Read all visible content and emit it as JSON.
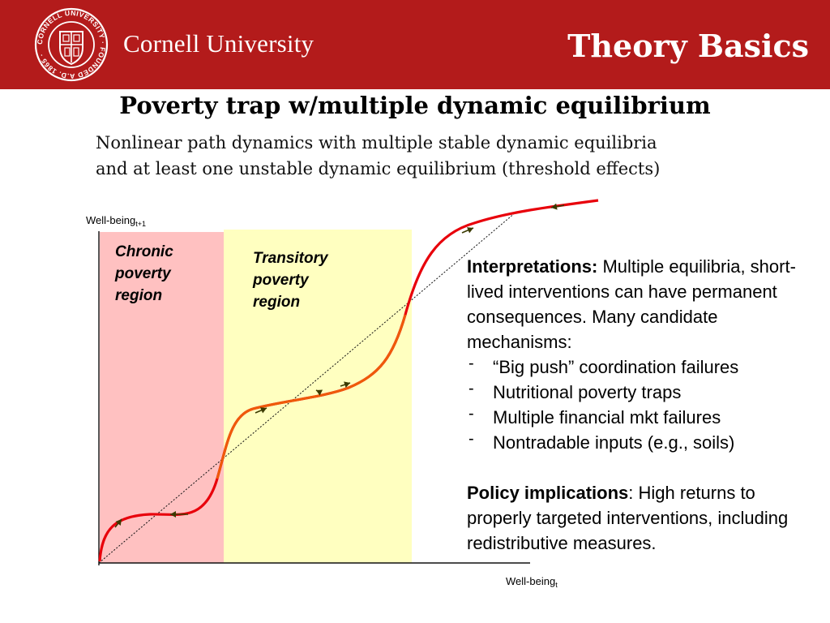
{
  "header": {
    "seal_text": "CORNELL UNIVERSITY · FOUNDED A.D. 1865 ·",
    "wordmark": "Cornell University",
    "section": "Theory Basics"
  },
  "slide": {
    "title": "Poverty trap w/multiple dynamic equilibrium",
    "subtitle_line1": "Nonlinear path dynamics with multiple stable dynamic equilibria",
    "subtitle_line2": "and at least one unstable dynamic equilibrium (threshold effects)"
  },
  "diagram": {
    "y_axis_label": "Well-being",
    "y_axis_sub": "t+1",
    "x_axis_label": "Well-being",
    "x_axis_sub": "t",
    "chronic_region_label": "Chronic\npoverty\nregion",
    "transitory_region_label": "Transitory\npoverty\nregion",
    "colors": {
      "chronic_region": "#ffc1c1",
      "transitory_region": "#ffffc0",
      "curve_red": "#e8000b",
      "curve_orange": "#ef5a0a",
      "arrow_dark": "#3a3a00"
    }
  },
  "panel": {
    "interpretations_heading": "Interpretations:",
    "interpretations_text": " Multiple equilibria, short-lived interventions can have permanent consequences. Many candidate mechanisms:",
    "bullet_marker": "-",
    "bullets": [
      "“Big push” coordination failures",
      "Nutritional poverty traps",
      "Multiple financial mkt failures",
      "Nontradable inputs (e.g., soils)"
    ],
    "policy_heading": "Policy implications",
    "policy_text": ": High returns to properly targeted interventions, including redistributive measures."
  }
}
